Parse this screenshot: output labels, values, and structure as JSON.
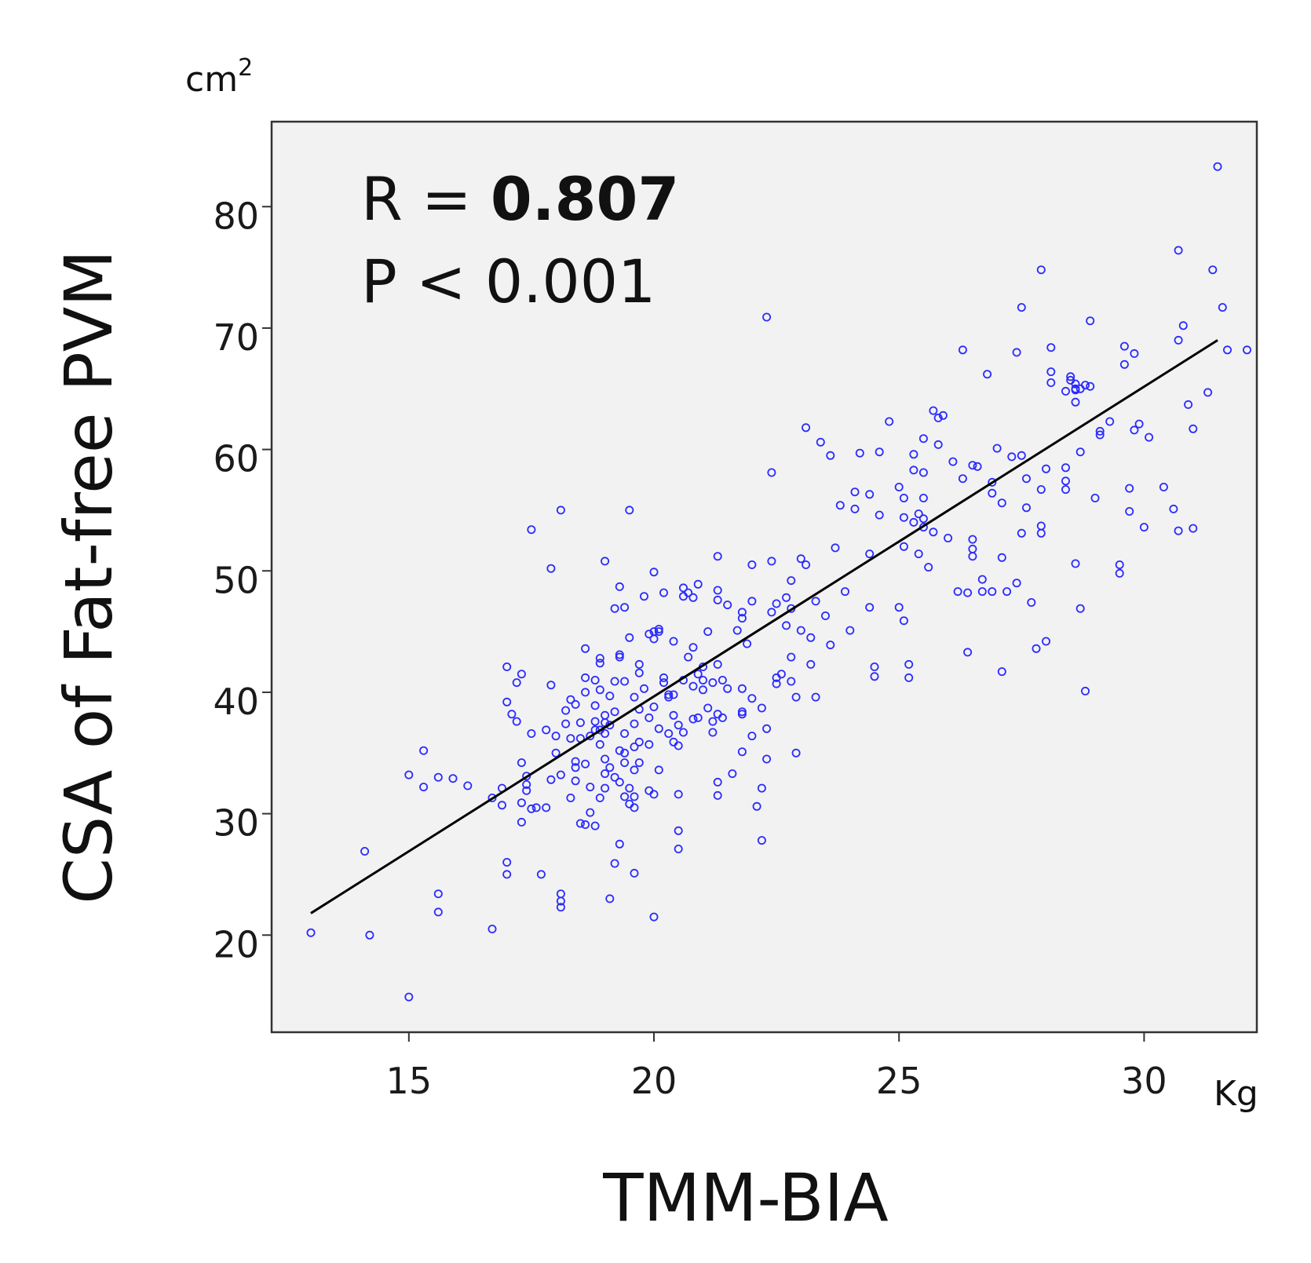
{
  "chart_data": {
    "type": "scatter",
    "xlabel": "TMM-BIA",
    "ylabel": "CSA of Fat-free PVM",
    "x_unit": "Kg",
    "y_unit_base": "cm",
    "y_unit_exp": "2",
    "xlim": [
      12.2,
      32.3
    ],
    "ylim": [
      12,
      87
    ],
    "xticks": [
      15,
      20,
      25,
      30
    ],
    "yticks": [
      20,
      30,
      40,
      50,
      60,
      70,
      80
    ],
    "annotation": {
      "r_prefix": "R = ",
      "r_value": "0.807",
      "p_text": "P < 0.001"
    },
    "fit_line": {
      "x1": 13.0,
      "y1": 21.8,
      "x2": 31.5,
      "y2": 69.0
    },
    "colors": {
      "background": "#f2f2f2",
      "points": "#2b2bff",
      "line": "#000000"
    },
    "points": [
      [
        13.0,
        20.2
      ],
      [
        14.1,
        26.9
      ],
      [
        14.2,
        20.0
      ],
      [
        15.0,
        14.9
      ],
      [
        15.0,
        33.2
      ],
      [
        15.3,
        32.2
      ],
      [
        15.3,
        35.2
      ],
      [
        15.6,
        33.0
      ],
      [
        15.6,
        23.4
      ],
      [
        15.6,
        21.9
      ],
      [
        15.9,
        32.9
      ],
      [
        16.2,
        32.3
      ],
      [
        16.7,
        20.5
      ],
      [
        16.7,
        31.3
      ],
      [
        16.9,
        30.7
      ],
      [
        16.9,
        32.1
      ],
      [
        17.0,
        26.0
      ],
      [
        17.0,
        25.0
      ],
      [
        17.0,
        39.2
      ],
      [
        17.0,
        42.1
      ],
      [
        17.1,
        38.2
      ],
      [
        17.2,
        37.6
      ],
      [
        17.2,
        40.8
      ],
      [
        17.3,
        41.5
      ],
      [
        17.3,
        34.2
      ],
      [
        17.3,
        29.3
      ],
      [
        17.3,
        30.9
      ],
      [
        17.4,
        33.1
      ],
      [
        17.4,
        32.4
      ],
      [
        17.4,
        31.9
      ],
      [
        17.5,
        30.4
      ],
      [
        17.5,
        36.6
      ],
      [
        17.5,
        53.4
      ],
      [
        17.6,
        30.5
      ],
      [
        17.7,
        25.0
      ],
      [
        17.8,
        30.5
      ],
      [
        17.8,
        36.9
      ],
      [
        17.9,
        50.2
      ],
      [
        17.9,
        40.6
      ],
      [
        17.9,
        32.8
      ],
      [
        18.0,
        36.4
      ],
      [
        18.0,
        35.0
      ],
      [
        18.1,
        23.4
      ],
      [
        18.1,
        22.8
      ],
      [
        18.1,
        22.3
      ],
      [
        18.1,
        33.2
      ],
      [
        18.1,
        55.0
      ],
      [
        18.2,
        37.4
      ],
      [
        18.2,
        38.5
      ],
      [
        18.3,
        31.3
      ],
      [
        18.3,
        36.2
      ],
      [
        18.3,
        39.4
      ],
      [
        18.4,
        39.0
      ],
      [
        18.4,
        32.7
      ],
      [
        18.4,
        34.3
      ],
      [
        18.4,
        33.8
      ],
      [
        18.5,
        29.2
      ],
      [
        18.5,
        36.2
      ],
      [
        18.5,
        37.5
      ],
      [
        18.6,
        43.6
      ],
      [
        18.6,
        41.2
      ],
      [
        18.6,
        40.0
      ],
      [
        18.6,
        34.1
      ],
      [
        18.6,
        29.1
      ],
      [
        18.7,
        32.2
      ],
      [
        18.7,
        30.1
      ],
      [
        18.7,
        36.4
      ],
      [
        18.8,
        38.9
      ],
      [
        18.8,
        41.0
      ],
      [
        18.8,
        37.6
      ],
      [
        18.8,
        36.9
      ],
      [
        18.8,
        29.0
      ],
      [
        18.9,
        42.4
      ],
      [
        18.9,
        42.8
      ],
      [
        18.9,
        40.2
      ],
      [
        18.9,
        36.9
      ],
      [
        18.9,
        35.7
      ],
      [
        18.9,
        31.3
      ],
      [
        19.0,
        50.8
      ],
      [
        19.0,
        38.1
      ],
      [
        19.0,
        37.5
      ],
      [
        19.0,
        36.6
      ],
      [
        19.0,
        34.5
      ],
      [
        19.0,
        33.3
      ],
      [
        19.0,
        32.1
      ],
      [
        19.1,
        37.3
      ],
      [
        19.1,
        39.7
      ],
      [
        19.1,
        33.8
      ],
      [
        19.1,
        23.0
      ],
      [
        19.2,
        46.9
      ],
      [
        19.2,
        40.9
      ],
      [
        19.2,
        38.4
      ],
      [
        19.2,
        33.0
      ],
      [
        19.2,
        25.9
      ],
      [
        19.3,
        35.2
      ],
      [
        19.3,
        32.6
      ],
      [
        19.3,
        42.9
      ],
      [
        19.3,
        43.1
      ],
      [
        19.3,
        48.7
      ],
      [
        19.3,
        27.5
      ],
      [
        19.4,
        47.0
      ],
      [
        19.4,
        40.9
      ],
      [
        19.4,
        36.6
      ],
      [
        19.4,
        35.0
      ],
      [
        19.4,
        34.2
      ],
      [
        19.4,
        31.4
      ],
      [
        19.5,
        32.1
      ],
      [
        19.5,
        30.8
      ],
      [
        19.5,
        55.0
      ],
      [
        19.5,
        44.5
      ],
      [
        19.6,
        30.5
      ],
      [
        19.6,
        35.5
      ],
      [
        19.6,
        37.4
      ],
      [
        19.6,
        39.6
      ],
      [
        19.6,
        33.6
      ],
      [
        19.6,
        31.4
      ],
      [
        19.6,
        25.1
      ],
      [
        19.7,
        42.3
      ],
      [
        19.7,
        41.6
      ],
      [
        19.7,
        38.6
      ],
      [
        19.7,
        35.9
      ],
      [
        19.7,
        34.2
      ],
      [
        19.8,
        47.9
      ],
      [
        19.8,
        40.3
      ],
      [
        19.9,
        37.9
      ],
      [
        19.9,
        35.7
      ],
      [
        19.9,
        44.8
      ],
      [
        19.9,
        31.9
      ],
      [
        20.0,
        44.4
      ],
      [
        20.0,
        45.0
      ],
      [
        20.0,
        49.9
      ],
      [
        20.0,
        38.8
      ],
      [
        20.0,
        31.6
      ],
      [
        20.0,
        21.5
      ],
      [
        20.1,
        45.2
      ],
      [
        20.1,
        45.0
      ],
      [
        20.1,
        37.0
      ],
      [
        20.1,
        33.6
      ],
      [
        20.2,
        48.2
      ],
      [
        20.2,
        40.8
      ],
      [
        20.2,
        41.2
      ],
      [
        20.3,
        39.6
      ],
      [
        20.3,
        36.6
      ],
      [
        20.3,
        39.8
      ],
      [
        20.4,
        39.8
      ],
      [
        20.4,
        44.2
      ],
      [
        20.4,
        38.1
      ],
      [
        20.4,
        35.9
      ],
      [
        20.5,
        31.6
      ],
      [
        20.5,
        28.6
      ],
      [
        20.5,
        27.1
      ],
      [
        20.5,
        37.3
      ],
      [
        20.5,
        35.6
      ],
      [
        20.6,
        48.6
      ],
      [
        20.6,
        47.9
      ],
      [
        20.6,
        36.7
      ],
      [
        20.6,
        41.0
      ],
      [
        20.7,
        48.2
      ],
      [
        20.7,
        42.9
      ],
      [
        20.8,
        47.8
      ],
      [
        20.8,
        40.5
      ],
      [
        20.8,
        43.7
      ],
      [
        20.8,
        37.8
      ],
      [
        20.9,
        48.9
      ],
      [
        20.9,
        37.9
      ],
      [
        20.9,
        41.5
      ],
      [
        21.0,
        42.1
      ],
      [
        21.0,
        41.0
      ],
      [
        21.0,
        40.2
      ],
      [
        21.1,
        45.0
      ],
      [
        21.1,
        38.7
      ],
      [
        21.2,
        37.6
      ],
      [
        21.2,
        36.7
      ],
      [
        21.2,
        40.8
      ],
      [
        21.3,
        32.6
      ],
      [
        21.3,
        31.5
      ],
      [
        21.3,
        51.2
      ],
      [
        21.3,
        48.4
      ],
      [
        21.3,
        47.6
      ],
      [
        21.3,
        42.3
      ],
      [
        21.3,
        38.2
      ],
      [
        21.4,
        37.9
      ],
      [
        21.4,
        41.0
      ],
      [
        21.5,
        40.3
      ],
      [
        21.5,
        47.2
      ],
      [
        21.6,
        33.3
      ],
      [
        21.7,
        45.1
      ],
      [
        21.8,
        46.1
      ],
      [
        21.8,
        46.6
      ],
      [
        21.8,
        40.3
      ],
      [
        21.8,
        38.4
      ],
      [
        21.8,
        38.2
      ],
      [
        21.8,
        35.1
      ],
      [
        21.9,
        44.0
      ],
      [
        22.0,
        50.5
      ],
      [
        22.0,
        47.5
      ],
      [
        22.0,
        39.5
      ],
      [
        22.0,
        36.4
      ],
      [
        22.1,
        30.6
      ],
      [
        22.2,
        38.7
      ],
      [
        22.2,
        32.1
      ],
      [
        22.2,
        27.8
      ],
      [
        22.3,
        34.5
      ],
      [
        22.3,
        37.0
      ],
      [
        22.3,
        70.9
      ],
      [
        22.4,
        58.1
      ],
      [
        22.4,
        50.8
      ],
      [
        22.4,
        46.6
      ],
      [
        22.5,
        47.3
      ],
      [
        22.5,
        41.2
      ],
      [
        22.5,
        40.7
      ],
      [
        22.6,
        41.5
      ],
      [
        22.7,
        47.8
      ],
      [
        22.7,
        45.5
      ],
      [
        22.8,
        49.2
      ],
      [
        22.8,
        46.9
      ],
      [
        22.8,
        42.9
      ],
      [
        22.8,
        40.9
      ],
      [
        22.9,
        39.6
      ],
      [
        22.9,
        35.0
      ],
      [
        23.0,
        45.1
      ],
      [
        23.0,
        51.0
      ],
      [
        23.1,
        61.8
      ],
      [
        23.1,
        50.5
      ],
      [
        23.2,
        42.3
      ],
      [
        23.2,
        44.5
      ],
      [
        23.3,
        47.5
      ],
      [
        23.3,
        39.6
      ],
      [
        23.4,
        60.6
      ],
      [
        23.5,
        46.3
      ],
      [
        23.6,
        59.5
      ],
      [
        23.6,
        43.9
      ],
      [
        23.7,
        51.9
      ],
      [
        23.8,
        55.4
      ],
      [
        23.9,
        48.3
      ],
      [
        24.0,
        45.1
      ],
      [
        24.1,
        56.5
      ],
      [
        24.1,
        55.1
      ],
      [
        24.2,
        59.7
      ],
      [
        24.4,
        56.3
      ],
      [
        24.4,
        51.4
      ],
      [
        24.4,
        47.0
      ],
      [
        24.5,
        42.1
      ],
      [
        24.5,
        41.3
      ],
      [
        24.6,
        59.8
      ],
      [
        24.6,
        54.6
      ],
      [
        24.8,
        62.3
      ],
      [
        25.0,
        56.9
      ],
      [
        25.0,
        47.0
      ],
      [
        25.1,
        56.0
      ],
      [
        25.1,
        54.4
      ],
      [
        25.1,
        52.0
      ],
      [
        25.1,
        45.9
      ],
      [
        25.2,
        42.3
      ],
      [
        25.2,
        41.2
      ],
      [
        25.3,
        59.6
      ],
      [
        25.3,
        58.3
      ],
      [
        25.3,
        54.0
      ],
      [
        25.4,
        54.7
      ],
      [
        25.4,
        51.4
      ],
      [
        25.5,
        60.9
      ],
      [
        25.5,
        58.1
      ],
      [
        25.5,
        56.0
      ],
      [
        25.5,
        54.3
      ],
      [
        25.5,
        53.6
      ],
      [
        25.6,
        50.3
      ],
      [
        25.7,
        53.2
      ],
      [
        25.7,
        63.2
      ],
      [
        25.8,
        62.6
      ],
      [
        25.8,
        60.4
      ],
      [
        25.9,
        62.8
      ],
      [
        26.0,
        52.7
      ],
      [
        26.1,
        59.0
      ],
      [
        26.2,
        48.3
      ],
      [
        26.3,
        68.2
      ],
      [
        26.3,
        57.6
      ],
      [
        26.4,
        43.3
      ],
      [
        26.4,
        48.2
      ],
      [
        26.5,
        52.6
      ],
      [
        26.5,
        51.8
      ],
      [
        26.5,
        51.2
      ],
      [
        26.5,
        58.7
      ],
      [
        26.6,
        58.6
      ],
      [
        26.7,
        49.3
      ],
      [
        26.7,
        48.3
      ],
      [
        26.8,
        66.2
      ],
      [
        26.9,
        56.4
      ],
      [
        26.9,
        57.3
      ],
      [
        26.9,
        48.3
      ],
      [
        27.0,
        60.1
      ],
      [
        27.1,
        55.6
      ],
      [
        27.1,
        51.1
      ],
      [
        27.1,
        41.7
      ],
      [
        27.2,
        48.3
      ],
      [
        27.3,
        59.4
      ],
      [
        27.4,
        68.0
      ],
      [
        27.4,
        49.0
      ],
      [
        27.5,
        71.7
      ],
      [
        27.5,
        59.5
      ],
      [
        27.5,
        53.1
      ],
      [
        27.6,
        55.2
      ],
      [
        27.6,
        57.6
      ],
      [
        27.7,
        47.4
      ],
      [
        27.8,
        43.6
      ],
      [
        27.9,
        74.8
      ],
      [
        27.9,
        56.7
      ],
      [
        27.9,
        53.7
      ],
      [
        27.9,
        53.1
      ],
      [
        28.0,
        44.2
      ],
      [
        28.0,
        58.4
      ],
      [
        28.1,
        66.4
      ],
      [
        28.1,
        65.5
      ],
      [
        28.1,
        68.4
      ],
      [
        28.4,
        64.8
      ],
      [
        28.4,
        56.7
      ],
      [
        28.4,
        57.4
      ],
      [
        28.4,
        58.5
      ],
      [
        28.5,
        66.0
      ],
      [
        28.5,
        65.7
      ],
      [
        28.6,
        65.4
      ],
      [
        28.6,
        65.0
      ],
      [
        28.6,
        64.9
      ],
      [
        28.6,
        63.9
      ],
      [
        28.6,
        50.6
      ],
      [
        28.7,
        65.0
      ],
      [
        28.7,
        59.8
      ],
      [
        28.7,
        46.9
      ],
      [
        28.8,
        40.1
      ],
      [
        28.8,
        65.3
      ],
      [
        28.9,
        70.6
      ],
      [
        28.9,
        65.2
      ],
      [
        29.0,
        56.0
      ],
      [
        29.1,
        61.2
      ],
      [
        29.1,
        61.5
      ],
      [
        29.3,
        62.3
      ],
      [
        29.5,
        50.5
      ],
      [
        29.5,
        49.8
      ],
      [
        29.6,
        67.0
      ],
      [
        29.6,
        68.5
      ],
      [
        29.7,
        56.8
      ],
      [
        29.7,
        54.9
      ],
      [
        29.8,
        67.9
      ],
      [
        29.8,
        61.6
      ],
      [
        29.9,
        62.1
      ],
      [
        30.0,
        53.6
      ],
      [
        30.1,
        61.0
      ],
      [
        30.4,
        56.9
      ],
      [
        30.6,
        55.1
      ],
      [
        30.7,
        53.3
      ],
      [
        30.7,
        69.0
      ],
      [
        30.7,
        76.4
      ],
      [
        30.8,
        70.2
      ],
      [
        30.9,
        63.7
      ],
      [
        31.0,
        61.7
      ],
      [
        31.0,
        53.5
      ],
      [
        31.3,
        64.7
      ],
      [
        31.4,
        74.8
      ],
      [
        31.5,
        83.3
      ],
      [
        31.6,
        71.7
      ],
      [
        31.7,
        68.2
      ],
      [
        32.1,
        68.2
      ]
    ]
  }
}
